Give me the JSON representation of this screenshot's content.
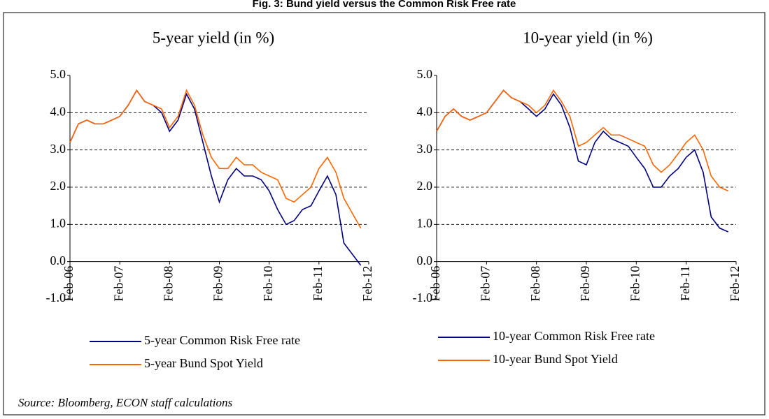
{
  "title": "Fig. 3: Bund yield versus the Common Risk Free rate",
  "source": "Source: Bloomberg, ECON staff calculations",
  "chart_data": [
    {
      "type": "line",
      "title": "5-year yield (in %)",
      "x": [
        2006.08,
        2006.25,
        2006.42,
        2006.58,
        2006.75,
        2006.92,
        2007.08,
        2007.25,
        2007.42,
        2007.58,
        2007.75,
        2007.92,
        2008.08,
        2008.25,
        2008.42,
        2008.58,
        2008.75,
        2008.92,
        2009.08,
        2009.25,
        2009.42,
        2009.58,
        2009.75,
        2009.92,
        2010.08,
        2010.25,
        2010.42,
        2010.58,
        2010.75,
        2010.92,
        2011.08,
        2011.25,
        2011.42,
        2011.58,
        2011.75,
        2011.92
      ],
      "xlim": [
        2006.08,
        2012.08
      ],
      "xticks": [
        {
          "value": 2006.08,
          "label": "Feb-06"
        },
        {
          "value": 2007.08,
          "label": "Feb-07"
        },
        {
          "value": 2008.08,
          "label": "Feb-08"
        },
        {
          "value": 2009.08,
          "label": "Feb-09"
        },
        {
          "value": 2010.08,
          "label": "Feb-10"
        },
        {
          "value": 2011.08,
          "label": "Feb-11"
        },
        {
          "value": 2012.08,
          "label": "Feb-12"
        }
      ],
      "ylim": [
        -1.0,
        5.0
      ],
      "yticks": [
        {
          "value": -1,
          "label": "-1.0"
        },
        {
          "value": 0,
          "label": "0.0"
        },
        {
          "value": 1,
          "label": "1.0"
        },
        {
          "value": 2,
          "label": "2.0"
        },
        {
          "value": 3,
          "label": "3.0"
        },
        {
          "value": 4,
          "label": "4.0"
        },
        {
          "value": 5,
          "label": "5.0"
        }
      ],
      "grid": true,
      "series": [
        {
          "name": "5-year Common Risk Free rate",
          "color": "#000080",
          "values": [
            3.2,
            3.7,
            3.8,
            3.7,
            3.7,
            3.8,
            3.9,
            4.2,
            4.6,
            4.3,
            4.2,
            4.0,
            3.5,
            3.8,
            4.5,
            4.1,
            3.2,
            2.3,
            1.6,
            2.2,
            2.5,
            2.3,
            2.3,
            2.2,
            1.9,
            1.4,
            1.0,
            1.1,
            1.4,
            1.5,
            1.9,
            2.3,
            1.8,
            0.5,
            0.2,
            -0.1
          ]
        },
        {
          "name": "5-year Bund Spot Yield",
          "color": "#ff6600",
          "values": [
            3.2,
            3.7,
            3.8,
            3.7,
            3.7,
            3.8,
            3.9,
            4.2,
            4.6,
            4.3,
            4.2,
            4.1,
            3.6,
            3.9,
            4.6,
            4.2,
            3.4,
            2.8,
            2.5,
            2.5,
            2.8,
            2.6,
            2.6,
            2.4,
            2.3,
            2.2,
            1.7,
            1.6,
            1.8,
            2.0,
            2.5,
            2.8,
            2.4,
            1.7,
            1.3,
            0.9
          ]
        }
      ]
    },
    {
      "type": "line",
      "title": "10-year yield (in %)",
      "x": [
        2006.08,
        2006.25,
        2006.42,
        2006.58,
        2006.75,
        2006.92,
        2007.08,
        2007.25,
        2007.42,
        2007.58,
        2007.75,
        2007.92,
        2008.08,
        2008.25,
        2008.42,
        2008.58,
        2008.75,
        2008.92,
        2009.08,
        2009.25,
        2009.42,
        2009.58,
        2009.75,
        2009.92,
        2010.08,
        2010.25,
        2010.42,
        2010.58,
        2010.75,
        2010.92,
        2011.08,
        2011.25,
        2011.42,
        2011.58,
        2011.75,
        2011.92
      ],
      "xlim": [
        2006.08,
        2012.08
      ],
      "xticks": [
        {
          "value": 2006.08,
          "label": "Feb-06"
        },
        {
          "value": 2007.08,
          "label": "Feb-07"
        },
        {
          "value": 2008.08,
          "label": "Feb-08"
        },
        {
          "value": 2009.08,
          "label": "Feb-09"
        },
        {
          "value": 2010.08,
          "label": "Feb-10"
        },
        {
          "value": 2011.08,
          "label": "Feb-11"
        },
        {
          "value": 2012.08,
          "label": "Feb-12"
        }
      ],
      "ylim": [
        -1.0,
        5.0
      ],
      "yticks": [
        {
          "value": -1,
          "label": "-1.0"
        },
        {
          "value": 0,
          "label": "0.0"
        },
        {
          "value": 1,
          "label": "1.0"
        },
        {
          "value": 2,
          "label": "2.0"
        },
        {
          "value": 3,
          "label": "3.0"
        },
        {
          "value": 4,
          "label": "4.0"
        },
        {
          "value": 5,
          "label": "5.0"
        }
      ],
      "grid": true,
      "series": [
        {
          "name": "10-year Common Risk Free rate",
          "color": "#000080",
          "values": [
            3.5,
            3.9,
            4.1,
            3.9,
            3.8,
            3.9,
            4.0,
            4.3,
            4.6,
            4.4,
            4.3,
            4.1,
            3.9,
            4.1,
            4.5,
            4.2,
            3.6,
            2.7,
            2.6,
            3.2,
            3.5,
            3.3,
            3.2,
            3.1,
            2.8,
            2.5,
            2.0,
            2.0,
            2.3,
            2.5,
            2.8,
            3.0,
            2.4,
            1.2,
            0.9,
            0.8
          ]
        },
        {
          "name": "10-year Bund Spot Yield",
          "color": "#ff6600",
          "values": [
            3.5,
            3.9,
            4.1,
            3.9,
            3.8,
            3.9,
            4.0,
            4.3,
            4.6,
            4.4,
            4.3,
            4.2,
            4.0,
            4.2,
            4.6,
            4.3,
            3.9,
            3.1,
            3.2,
            3.4,
            3.6,
            3.4,
            3.4,
            3.3,
            3.2,
            3.1,
            2.6,
            2.4,
            2.6,
            2.9,
            3.2,
            3.4,
            3.0,
            2.3,
            2.0,
            1.9
          ]
        }
      ]
    }
  ]
}
